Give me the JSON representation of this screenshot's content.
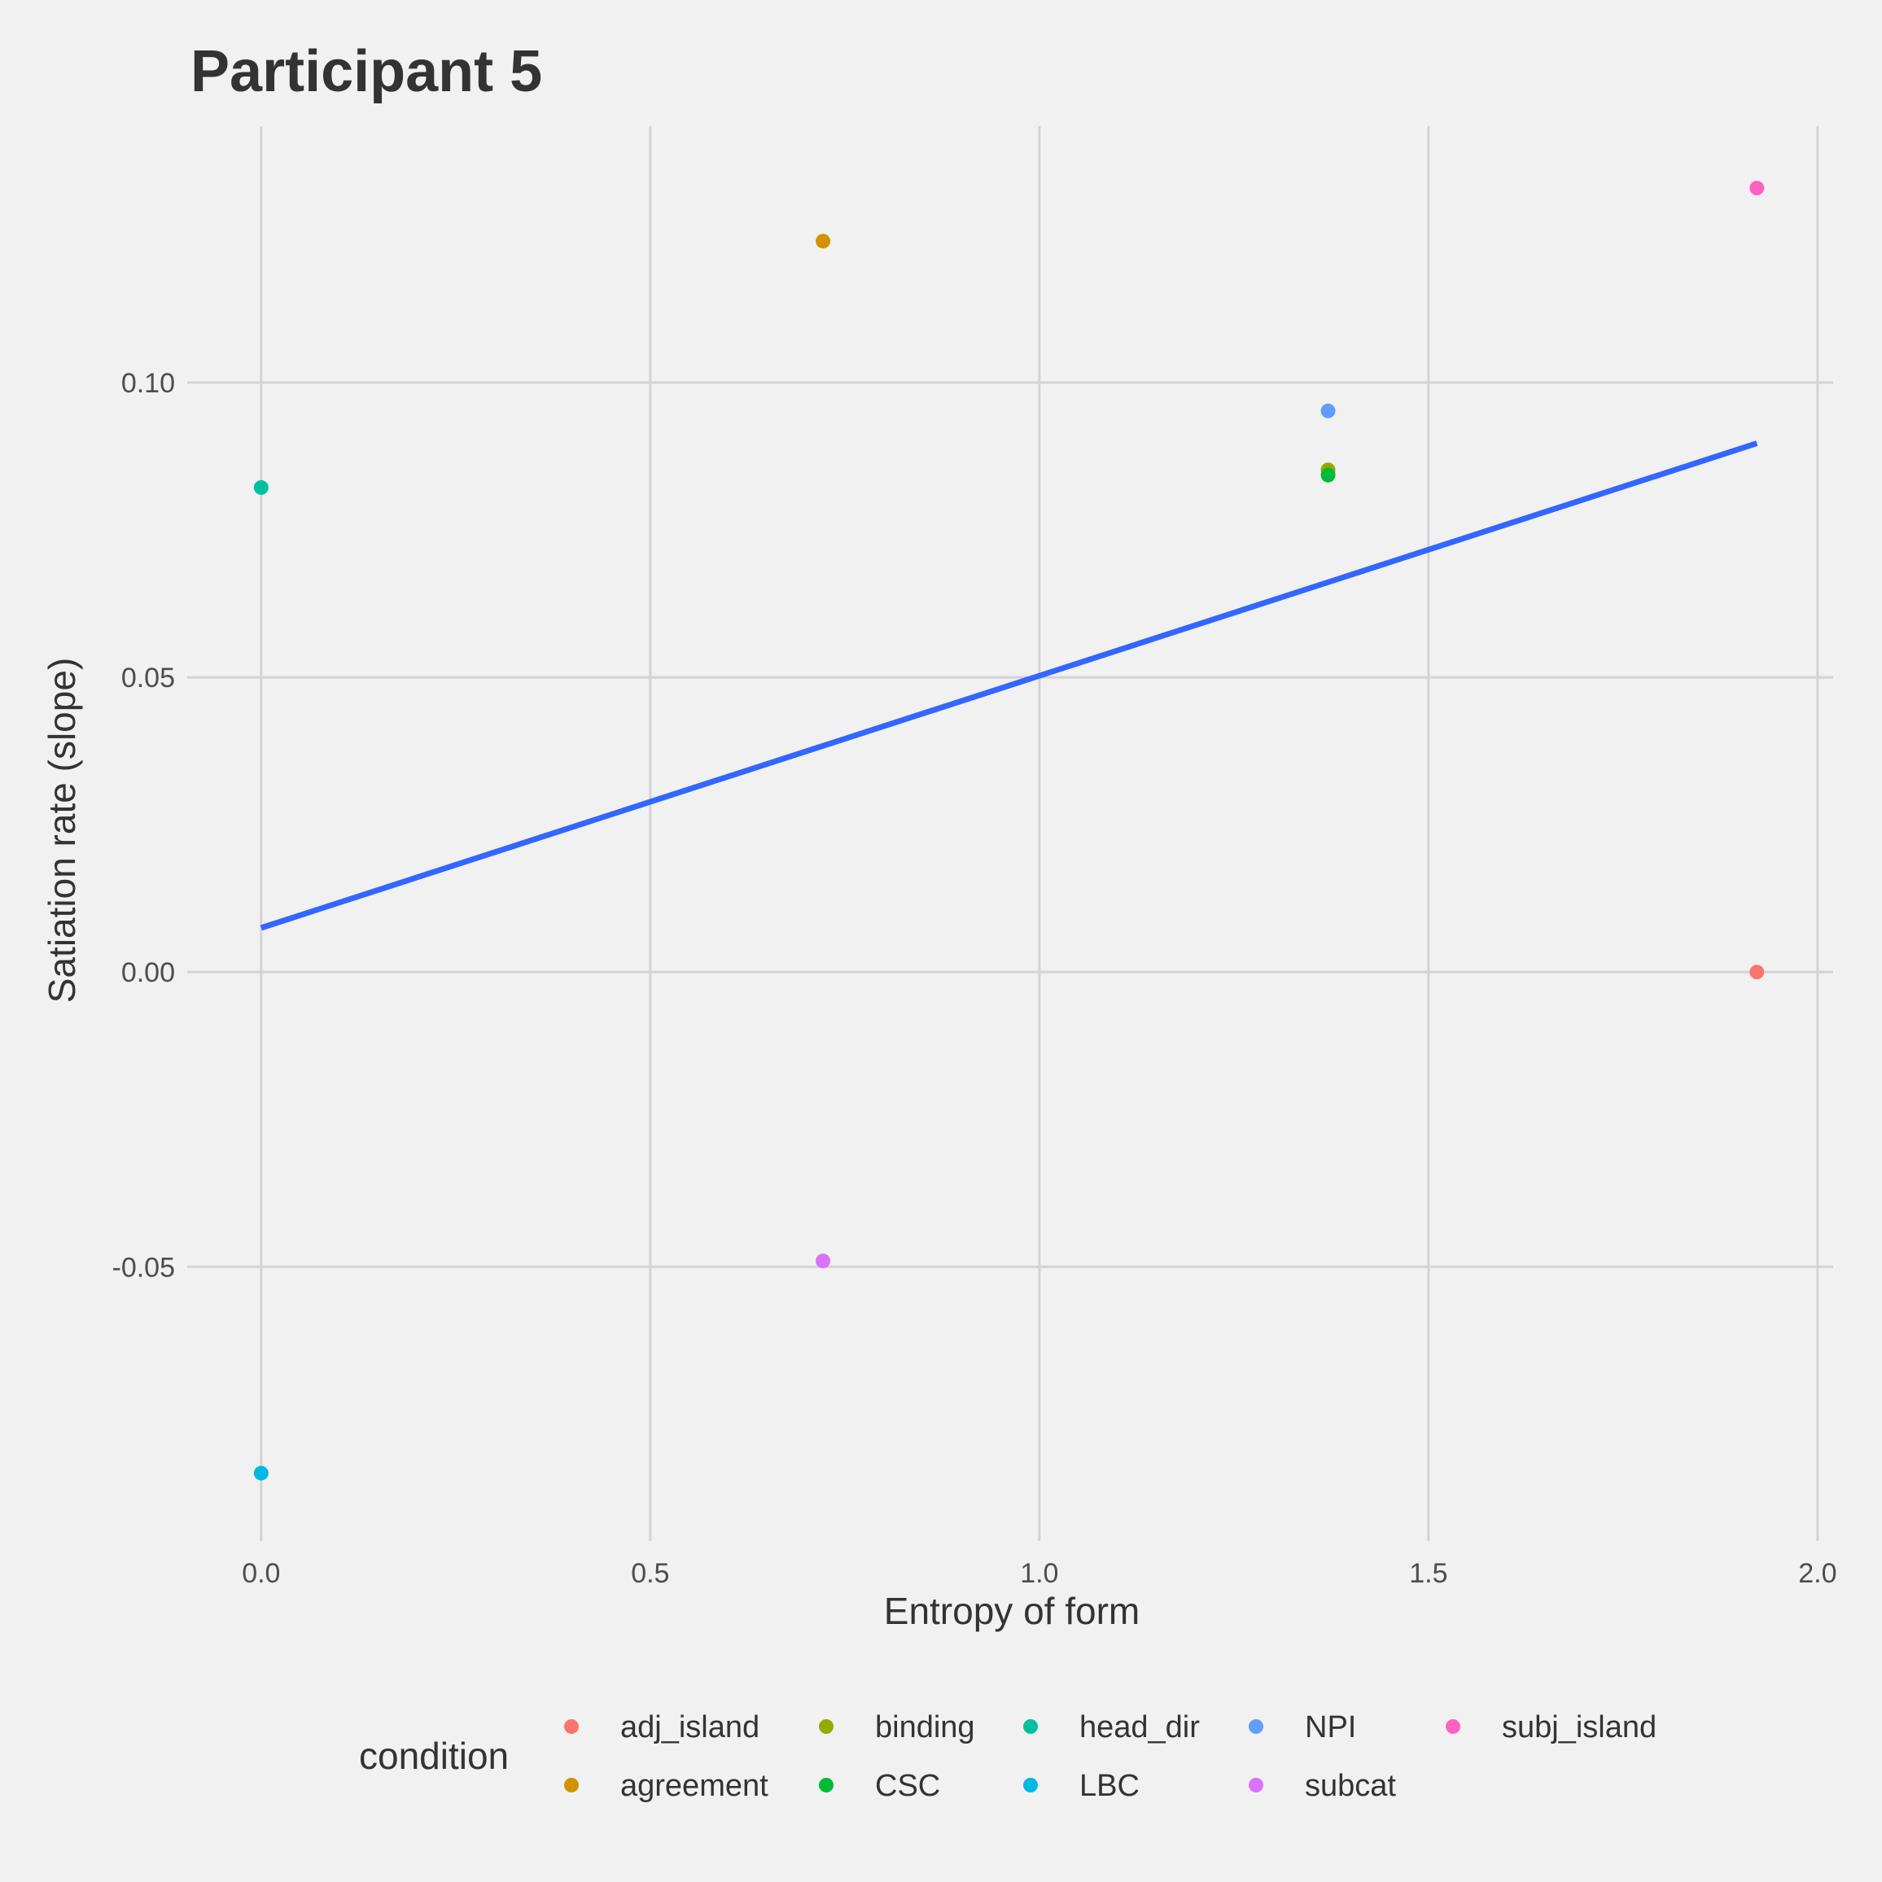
{
  "chart_data": {
    "type": "scatter",
    "title": "Participant 5",
    "xlabel": "Entropy of form",
    "ylabel": "Satiation rate (slope)",
    "xlim": [
      -0.095,
      2.02
    ],
    "ylim": [
      -0.0965,
      0.1435
    ],
    "x_ticks": [
      0.0,
      0.5,
      1.0,
      1.5,
      2.0
    ],
    "x_tick_labels": [
      "0.0",
      "0.5",
      "1.0",
      "1.5",
      "2.0"
    ],
    "y_ticks": [
      -0.05,
      0.0,
      0.05,
      0.1
    ],
    "y_tick_labels": [
      "-0.05",
      "0.00",
      "0.05",
      "0.10"
    ],
    "grid": true,
    "legend_title": "condition",
    "legend_position": "bottom",
    "series": [
      {
        "name": "adj_island",
        "color": "#F8766D",
        "x": 1.922,
        "y": 0.0
      },
      {
        "name": "agreement",
        "color": "#D39200",
        "x": 0.722,
        "y": 0.124
      },
      {
        "name": "binding",
        "color": "#93AA00",
        "x": 1.371,
        "y": 0.0852
      },
      {
        "name": "CSC",
        "color": "#00BA38",
        "x": 1.371,
        "y": 0.0843
      },
      {
        "name": "head_dir",
        "color": "#00C19F",
        "x": 0.0,
        "y": 0.0822
      },
      {
        "name": "LBC",
        "color": "#00B9E3",
        "x": 0.0,
        "y": -0.085
      },
      {
        "name": "NPI",
        "color": "#619CFF",
        "x": 1.371,
        "y": 0.0952
      },
      {
        "name": "subcat",
        "color": "#DB72FB",
        "x": 0.722,
        "y": -0.049
      },
      {
        "name": "subj_island",
        "color": "#FF61C3",
        "x": 1.922,
        "y": 0.133
      }
    ],
    "trend_line": {
      "color": "#3366FF",
      "x": [
        0.0,
        1.922
      ],
      "y": [
        0.0075,
        0.0897
      ]
    }
  }
}
